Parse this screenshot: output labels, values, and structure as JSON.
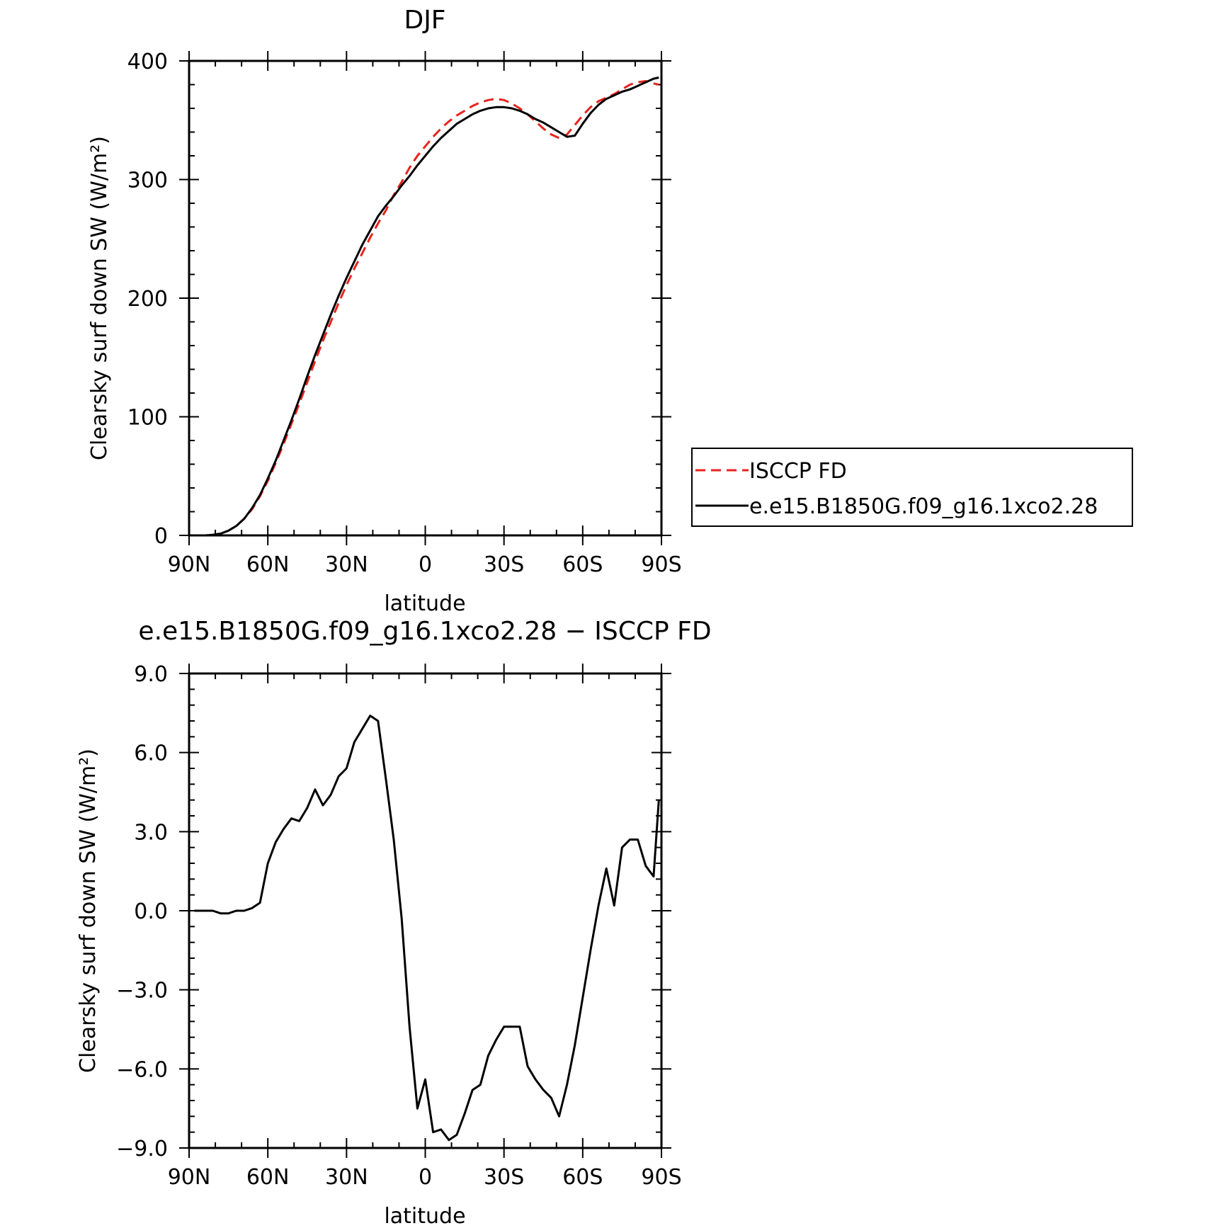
{
  "chart_data": [
    {
      "type": "line",
      "title": "DJF",
      "xlabel": "latitude",
      "ylabel": "Clearsky surf down SW (W/m²)",
      "x_ticks": [
        90,
        60,
        30,
        0,
        -30,
        -60,
        -90
      ],
      "x_tick_labels": [
        "90N",
        "60N",
        "30N",
        "0",
        "30S",
        "60S",
        "90S"
      ],
      "xlim": [
        90,
        -90
      ],
      "ylim": [
        0,
        400
      ],
      "y_ticks": [
        0,
        100,
        200,
        300,
        400
      ],
      "y_tick_labels": [
        "0",
        "100",
        "200",
        "300",
        "400"
      ],
      "legend": {
        "position": "right"
      },
      "series": [
        {
          "name": "ISCCP FD",
          "color": "#e8231e",
          "dash": true,
          "x": [
            88,
            84,
            81,
            78,
            75,
            72,
            69,
            66,
            63,
            60,
            57,
            54,
            51,
            48,
            45,
            42,
            39,
            36,
            33,
            30,
            27,
            24,
            21,
            18,
            15,
            12,
            9,
            6,
            3,
            0,
            -3,
            -6,
            -9,
            -12,
            -15,
            -18,
            -21,
            -24,
            -27,
            -30,
            -33,
            -36,
            -39,
            -42,
            -45,
            -48,
            -51,
            -54,
            -57,
            -60,
            -63,
            -66,
            -69,
            -72,
            -75,
            -78,
            -81,
            -84,
            -87,
            -89
          ],
          "y": [
            0,
            0,
            0.5,
            1.5,
            4,
            8,
            14,
            22,
            33,
            46,
            61,
            77,
            94,
            111,
            129,
            147,
            164,
            180,
            196,
            211,
            225,
            238,
            251,
            263,
            274,
            287,
            298,
            310,
            320,
            328,
            336,
            343,
            349,
            354,
            358,
            362,
            365,
            367,
            368,
            367,
            364,
            360,
            355,
            349,
            343,
            338,
            335,
            338,
            346,
            354,
            361,
            366,
            369,
            372,
            376,
            380,
            382,
            383,
            381,
            380
          ]
        },
        {
          "name": "e.e15.B1850G.f09_g16.1xco2.28",
          "color": "#000000",
          "dash": false,
          "x": [
            88,
            84,
            81,
            78,
            75,
            72,
            69,
            66,
            63,
            60,
            57,
            54,
            51,
            48,
            45,
            42,
            39,
            36,
            33,
            30,
            27,
            24,
            21,
            18,
            15,
            12,
            9,
            6,
            3,
            0,
            -3,
            -6,
            -9,
            -12,
            -15,
            -18,
            -21,
            -24,
            -27,
            -30,
            -33,
            -36,
            -39,
            -42,
            -45,
            -48,
            -51,
            -54,
            -57,
            -60,
            -63,
            -66,
            -69,
            -72,
            -75,
            -78,
            -81,
            -84,
            -87,
            -89
          ],
          "y": [
            0,
            0,
            0.5,
            1.5,
            4,
            8,
            14,
            23,
            34,
            48,
            63,
            80,
            97,
            115,
            134,
            152,
            169,
            186,
            202,
            217,
            231,
            245,
            257,
            269,
            278,
            286,
            295,
            303,
            312,
            320,
            328,
            335,
            341,
            347,
            351,
            355,
            358,
            360,
            361,
            361,
            360,
            358,
            355,
            351,
            348,
            344,
            340,
            336,
            337,
            347,
            356,
            363,
            368,
            371,
            374,
            376,
            379,
            382,
            385,
            386
          ]
        }
      ]
    },
    {
      "type": "line",
      "title": "e.e15.B1850G.f09_g16.1xco2.28 − ISCCP FD",
      "xlabel": "latitude",
      "ylabel": "Clearsky surf down SW (W/m²)",
      "x_ticks": [
        90,
        60,
        30,
        0,
        -30,
        -60,
        -90
      ],
      "x_tick_labels": [
        "90N",
        "60N",
        "30N",
        "0",
        "30S",
        "60S",
        "90S"
      ],
      "xlim": [
        90,
        -90
      ],
      "ylim": [
        -9,
        9
      ],
      "y_ticks": [
        -9,
        -6,
        -3,
        0,
        3,
        6,
        9
      ],
      "y_tick_labels": [
        "−9.0",
        "−6.0",
        "−3.0",
        "0.0",
        "3.0",
        "6.0",
        "9.0"
      ],
      "series": [
        {
          "color": "#000000",
          "x": [
            88,
            84,
            81,
            78,
            75,
            72,
            69,
            66,
            63,
            60,
            57,
            54,
            51,
            48,
            45,
            42,
            39,
            36,
            33,
            30,
            27,
            24,
            21,
            18,
            15,
            12,
            9,
            6,
            3,
            0,
            -3,
            -6,
            -9,
            -12,
            -15,
            -18,
            -21,
            -24,
            -27,
            -30,
            -33,
            -36,
            -39,
            -42,
            -45,
            -48,
            -51,
            -54,
            -57,
            -60,
            -63,
            -66,
            -69,
            -72,
            -75,
            -78,
            -81,
            -84,
            -87,
            -89
          ],
          "y": [
            0,
            0,
            0,
            -0.1,
            -0.1,
            0,
            0,
            0.1,
            0.3,
            1.8,
            2.6,
            3.1,
            3.5,
            3.4,
            3.9,
            4.6,
            4.0,
            4.4,
            5.1,
            5.4,
            6.4,
            6.9,
            7.4,
            7.2,
            5.0,
            2.7,
            -0.3,
            -4.4,
            -7.5,
            -6.4,
            -8.4,
            -8.3,
            -8.7,
            -8.5,
            -7.7,
            -6.8,
            -6.6,
            -5.5,
            -4.9,
            -4.4,
            -4.4,
            -4.4,
            -5.9,
            -6.4,
            -6.8,
            -7.1,
            -7.8,
            -6.6,
            -5.1,
            -3.3,
            -1.5,
            0.2,
            1.6,
            0.2,
            2.4,
            2.7,
            2.7,
            1.7,
            1.3,
            4.2
          ]
        }
      ]
    }
  ]
}
